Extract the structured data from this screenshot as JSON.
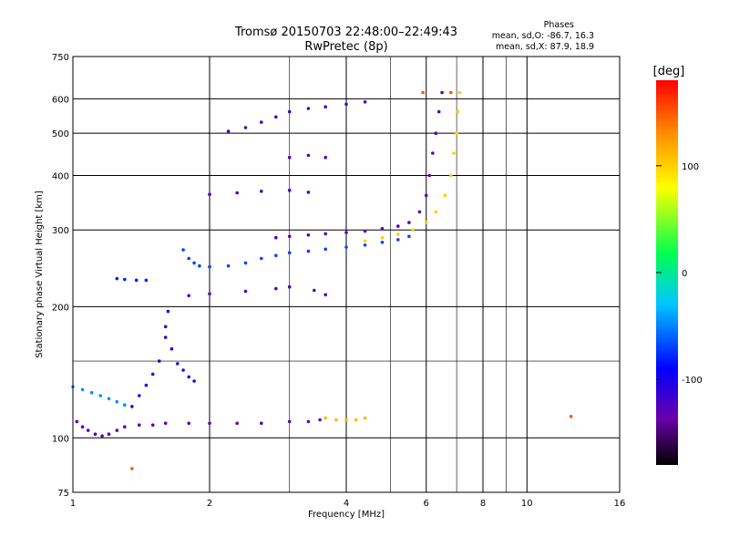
{
  "header": {
    "title_line1": "Tromsø 20150703 22:48:00–22:49:43",
    "title_line2": "RwPretec (8p)",
    "stats_heading": "Phases",
    "stats_o": "mean, sd,O: -86.7, 16.3",
    "stats_x": "mean, sd,X: 87.9, 18.9"
  },
  "chart_data": {
    "type": "scatter",
    "xlabel": "Frequency [MHz]",
    "ylabel": "Stationary phase Virtual Height [km]",
    "x_scale": "log",
    "y_scale": "log",
    "xlim": [
      1,
      16
    ],
    "ylim": [
      75,
      750
    ],
    "x_ticks": [
      1,
      2,
      4,
      6,
      8,
      10,
      16
    ],
    "y_ticks": [
      75,
      100,
      200,
      300,
      400,
      500,
      600,
      750
    ],
    "x_grid_major": [
      2,
      4,
      6,
      8,
      10
    ],
    "x_grid_minor": [
      3,
      5,
      7,
      9
    ],
    "y_grid_major": [
      100,
      200,
      300,
      400,
      500,
      600
    ],
    "y_grid_minor": [
      150
    ],
    "colorbar": {
      "label": "[deg]",
      "range": [
        -180,
        180
      ],
      "ticks": [
        100,
        0,
        -100
      ],
      "colors": [
        "#000000",
        "#6a00a8",
        "#0000ff",
        "#00c8ff",
        "#00ff50",
        "#ffff00",
        "#ff9000",
        "#ff0000"
      ]
    },
    "series": [
      {
        "phase": -120,
        "points": [
          [
            1.02,
            109
          ],
          [
            1.05,
            106
          ],
          [
            1.08,
            104
          ],
          [
            1.12,
            102
          ],
          [
            1.16,
            101
          ],
          [
            1.2,
            102
          ],
          [
            1.25,
            104
          ],
          [
            1.3,
            106
          ],
          [
            1.4,
            107
          ],
          [
            1.5,
            107
          ],
          [
            1.6,
            108
          ],
          [
            1.8,
            108
          ],
          [
            2.0,
            108
          ],
          [
            2.3,
            108
          ],
          [
            2.6,
            108
          ],
          [
            3.0,
            109
          ],
          [
            3.3,
            109
          ],
          [
            3.5,
            110
          ]
        ]
      },
      {
        "phase": -40,
        "points": [
          [
            1.0,
            131
          ],
          [
            1.05,
            129
          ],
          [
            1.1,
            127
          ],
          [
            1.15,
            125
          ],
          [
            1.2,
            123
          ],
          [
            1.25,
            121
          ],
          [
            1.3,
            119
          ]
        ]
      },
      {
        "phase": -100,
        "points": [
          [
            1.35,
            118
          ],
          [
            1.4,
            125
          ],
          [
            1.45,
            132
          ],
          [
            1.5,
            140
          ],
          [
            1.55,
            150
          ],
          [
            1.6,
            170
          ],
          [
            1.62,
            195
          ],
          [
            1.6,
            180
          ],
          [
            1.65,
            160
          ],
          [
            1.7,
            148
          ],
          [
            1.75,
            143
          ],
          [
            1.8,
            138
          ],
          [
            1.85,
            135
          ]
        ]
      },
      {
        "phase": -70,
        "points": [
          [
            1.25,
            232
          ],
          [
            1.3,
            231
          ],
          [
            1.38,
            230
          ],
          [
            1.45,
            230
          ]
        ]
      },
      {
        "phase": -60,
        "points": [
          [
            1.75,
            270
          ],
          [
            1.8,
            258
          ],
          [
            1.85,
            252
          ],
          [
            1.9,
            248
          ],
          [
            2.0,
            247
          ],
          [
            2.2,
            248
          ],
          [
            2.4,
            252
          ],
          [
            2.6,
            258
          ],
          [
            2.8,
            262
          ],
          [
            3.0,
            266
          ],
          [
            3.3,
            268
          ],
          [
            3.6,
            271
          ],
          [
            4.0,
            274
          ],
          [
            4.4,
            277
          ],
          [
            4.8,
            281
          ],
          [
            5.2,
            285
          ],
          [
            5.5,
            290
          ]
        ]
      },
      {
        "phase": -115,
        "points": [
          [
            2.8,
            288
          ],
          [
            3.0,
            290
          ],
          [
            3.3,
            292
          ],
          [
            3.6,
            294
          ],
          [
            4.0,
            296
          ],
          [
            4.4,
            298
          ],
          [
            4.8,
            302
          ],
          [
            5.2,
            306
          ],
          [
            5.5,
            312
          ],
          [
            5.8,
            330
          ],
          [
            6.0,
            360
          ],
          [
            6.1,
            400
          ],
          [
            6.2,
            450
          ],
          [
            6.3,
            500
          ],
          [
            6.4,
            560
          ],
          [
            6.5,
            620
          ]
        ]
      },
      {
        "phase": 100,
        "points": [
          [
            4.4,
            283
          ],
          [
            4.8,
            288
          ],
          [
            5.2,
            293
          ],
          [
            5.6,
            300
          ],
          [
            6.0,
            312
          ],
          [
            6.3,
            330
          ],
          [
            6.6,
            360
          ],
          [
            6.8,
            400
          ],
          [
            6.9,
            450
          ],
          [
            7.0,
            500
          ],
          [
            7.05,
            560
          ],
          [
            7.1,
            620
          ]
        ]
      },
      {
        "phase": 110,
        "points": [
          [
            3.6,
            111
          ],
          [
            3.8,
            110
          ],
          [
            4.0,
            110
          ],
          [
            4.2,
            110
          ],
          [
            4.4,
            111
          ]
        ]
      },
      {
        "phase": -110,
        "points": [
          [
            2.2,
            505
          ],
          [
            2.4,
            515
          ],
          [
            2.6,
            530
          ],
          [
            2.8,
            545
          ],
          [
            3.0,
            560
          ],
          [
            3.3,
            570
          ],
          [
            3.6,
            575
          ],
          [
            4.0,
            583
          ],
          [
            4.4,
            590
          ]
        ]
      },
      {
        "phase": -115,
        "points": [
          [
            1.8,
            212
          ],
          [
            2.0,
            214
          ],
          [
            2.4,
            217
          ],
          [
            2.8,
            220
          ],
          [
            3.0,
            222
          ],
          [
            3.4,
            218
          ],
          [
            3.6,
            213
          ]
        ]
      },
      {
        "phase": -110,
        "points": [
          [
            2.0,
            362
          ],
          [
            2.3,
            365
          ],
          [
            2.6,
            368
          ],
          [
            3.0,
            370
          ],
          [
            3.3,
            366
          ]
        ]
      },
      {
        "phase": -118,
        "points": [
          [
            3.0,
            440
          ],
          [
            3.3,
            445
          ],
          [
            3.6,
            440
          ]
        ]
      },
      {
        "phase": 150,
        "points": [
          [
            1.35,
            85
          ],
          [
            5.9,
            620
          ],
          [
            6.8,
            620
          ],
          [
            12.5,
            112
          ]
        ]
      }
    ]
  }
}
